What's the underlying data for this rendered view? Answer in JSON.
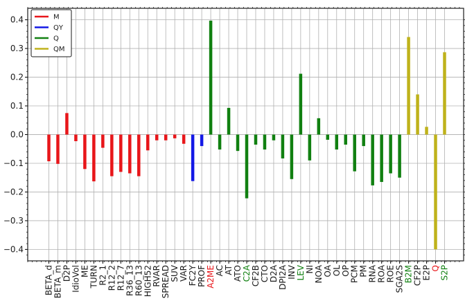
{
  "chart_data": {
    "type": "bar",
    "ylim": [
      -0.44,
      0.44
    ],
    "yticks": [
      -0.4,
      -0.3,
      -0.2,
      -0.1,
      0.0,
      0.1,
      0.2,
      0.3,
      0.4
    ],
    "ytick_labels": [
      "−0.4",
      "−0.3",
      "−0.2",
      "−0.1",
      "0.0",
      "0.1",
      "0.2",
      "0.3",
      "0.4"
    ],
    "grid": true,
    "legend_position": "top-left",
    "legend": [
      {
        "name": "M",
        "color": "#e8161a"
      },
      {
        "name": "QY",
        "color": "#1419e6"
      },
      {
        "name": "Q",
        "color": "#118011"
      },
      {
        "name": "QM",
        "color": "#bfb21b"
      }
    ],
    "categories": [
      {
        "label": "BETA_d",
        "value": -0.093,
        "series": "M",
        "label_color": "#1a1a1a"
      },
      {
        "label": "BETA_m",
        "value": -0.102,
        "series": "M",
        "label_color": "#1a1a1a"
      },
      {
        "label": "D2P",
        "value": 0.075,
        "series": "M",
        "label_color": "#1a1a1a"
      },
      {
        "label": "IdioVol",
        "value": -0.023,
        "series": "M",
        "label_color": "#1a1a1a"
      },
      {
        "label": "ME",
        "value": -0.12,
        "series": "M",
        "label_color": "#1a1a1a"
      },
      {
        "label": "TURN",
        "value": -0.163,
        "series": "M",
        "label_color": "#1a1a1a"
      },
      {
        "label": "R2_1",
        "value": -0.046,
        "series": "M",
        "label_color": "#1a1a1a"
      },
      {
        "label": "R12_2",
        "value": -0.145,
        "series": "M",
        "label_color": "#1a1a1a"
      },
      {
        "label": "R12_7",
        "value": -0.13,
        "series": "M",
        "label_color": "#1a1a1a"
      },
      {
        "label": "R36_13",
        "value": -0.135,
        "series": "M",
        "label_color": "#1a1a1a"
      },
      {
        "label": "R60_13",
        "value": -0.145,
        "series": "M",
        "label_color": "#1a1a1a"
      },
      {
        "label": "HIGH52",
        "value": -0.055,
        "series": "M",
        "label_color": "#1a1a1a"
      },
      {
        "label": "RVAR",
        "value": -0.02,
        "series": "M",
        "label_color": "#1a1a1a"
      },
      {
        "label": "SPREAD",
        "value": -0.02,
        "series": "M",
        "label_color": "#1a1a1a"
      },
      {
        "label": "SUV",
        "value": -0.013,
        "series": "M",
        "label_color": "#1a1a1a"
      },
      {
        "label": "VAR",
        "value": -0.032,
        "series": "M",
        "label_color": "#1a1a1a"
      },
      {
        "label": "FC2Y",
        "value": -0.162,
        "series": "QY",
        "label_color": "#1a1a1a"
      },
      {
        "label": "PROF",
        "value": -0.04,
        "series": "QY",
        "label_color": "#1a1a1a"
      },
      {
        "label": "A2ME",
        "value": 0.397,
        "series": "Q",
        "label_color": "#e8161a"
      },
      {
        "label": "AC",
        "value": -0.052,
        "series": "Q",
        "label_color": "#1a1a1a"
      },
      {
        "label": "AT",
        "value": 0.093,
        "series": "Q",
        "label_color": "#1a1a1a"
      },
      {
        "label": "ATO",
        "value": -0.057,
        "series": "Q",
        "label_color": "#1a1a1a"
      },
      {
        "label": "C2A",
        "value": -0.222,
        "series": "Q",
        "label_color": "#118011"
      },
      {
        "label": "CF2B",
        "value": -0.035,
        "series": "Q",
        "label_color": "#1a1a1a"
      },
      {
        "label": "CTO",
        "value": -0.052,
        "series": "Q",
        "label_color": "#1a1a1a"
      },
      {
        "label": "D2A",
        "value": -0.02,
        "series": "Q",
        "label_color": "#1a1a1a"
      },
      {
        "label": "DPI2A",
        "value": -0.083,
        "series": "Q",
        "label_color": "#1a1a1a"
      },
      {
        "label": "INV",
        "value": -0.155,
        "series": "Q",
        "label_color": "#1a1a1a"
      },
      {
        "label": "LEV",
        "value": 0.212,
        "series": "Q",
        "label_color": "#118011"
      },
      {
        "label": "NI",
        "value": -0.09,
        "series": "Q",
        "label_color": "#1a1a1a"
      },
      {
        "label": "NOA",
        "value": 0.057,
        "series": "Q",
        "label_color": "#1a1a1a"
      },
      {
        "label": "OA",
        "value": -0.018,
        "series": "Q",
        "label_color": "#1a1a1a"
      },
      {
        "label": "OL",
        "value": -0.052,
        "series": "Q",
        "label_color": "#1a1a1a"
      },
      {
        "label": "OP",
        "value": -0.035,
        "series": "Q",
        "label_color": "#1a1a1a"
      },
      {
        "label": "PCM",
        "value": -0.128,
        "series": "Q",
        "label_color": "#1a1a1a"
      },
      {
        "label": "PM",
        "value": -0.04,
        "series": "Q",
        "label_color": "#1a1a1a"
      },
      {
        "label": "RNA",
        "value": -0.177,
        "series": "Q",
        "label_color": "#1a1a1a"
      },
      {
        "label": "ROA",
        "value": -0.165,
        "series": "Q",
        "label_color": "#1a1a1a"
      },
      {
        "label": "ROE",
        "value": -0.135,
        "series": "Q",
        "label_color": "#1a1a1a"
      },
      {
        "label": "SGA2S",
        "value": -0.15,
        "series": "Q",
        "label_color": "#1a1a1a"
      },
      {
        "label": "B2M",
        "value": 0.34,
        "series": "QM",
        "label_color": "#118011"
      },
      {
        "label": "CF2P",
        "value": 0.14,
        "series": "QM",
        "label_color": "#1a1a1a"
      },
      {
        "label": "E2P",
        "value": 0.027,
        "series": "QM",
        "label_color": "#1a1a1a"
      },
      {
        "label": "Q",
        "value": -0.4,
        "series": "QM",
        "label_color": "#e8161a"
      },
      {
        "label": "S2P",
        "value": 0.287,
        "series": "QM",
        "label_color": "#118011"
      }
    ]
  }
}
